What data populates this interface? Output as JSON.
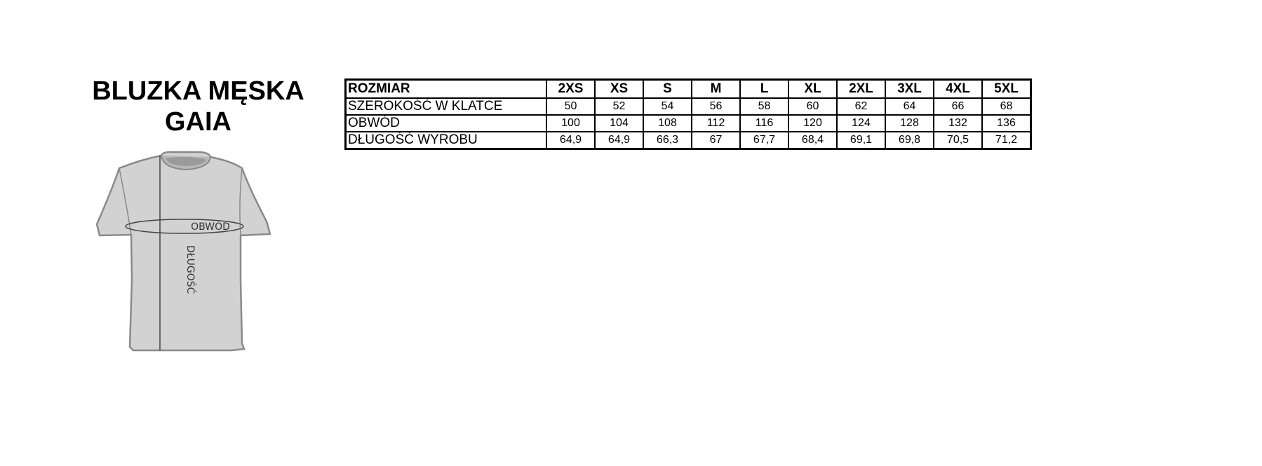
{
  "title": {
    "line1": "BLUZKA MĘSKA",
    "line2": "GAIA"
  },
  "diagram": {
    "girth_label": "OBWÓD",
    "length_label": "DŁUGOŚĆ"
  },
  "table": {
    "header": [
      "ROZMIAR",
      "2XS",
      "XS",
      "S",
      "M",
      "L",
      "XL",
      "2XL",
      "3XL",
      "4XL",
      "5XL"
    ],
    "rows": [
      [
        "SZEROKOŚĆ W KLATCE",
        "50",
        "52",
        "54",
        "56",
        "58",
        "60",
        "62",
        "64",
        "66",
        "68"
      ],
      [
        "OBWÓD",
        "100",
        "104",
        "108",
        "112",
        "116",
        "120",
        "124",
        "128",
        "132",
        "136"
      ],
      [
        "DŁUGOŚĆ WYROBU",
        "64,9",
        "64,9",
        "66,3",
        "67",
        "67,7",
        "68,4",
        "69,1",
        "69,8",
        "70,5",
        "71,2"
      ]
    ]
  }
}
